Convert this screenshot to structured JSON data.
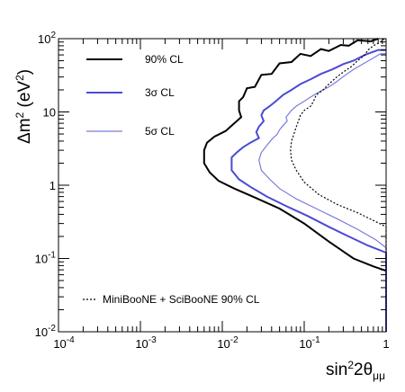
{
  "chart_data": {
    "type": "line",
    "xlabel": "sin²2θμμ",
    "ylabel": "Δm² (eV²)",
    "xscale": "log",
    "yscale": "log",
    "xlim": [
      0.0001,
      1
    ],
    "ylim": [
      0.01,
      100
    ],
    "x_ticks": [
      {
        "value": 0.0001,
        "mantissa": "10",
        "exp": "-4"
      },
      {
        "value": 0.001,
        "mantissa": "10",
        "exp": "-3"
      },
      {
        "value": 0.01,
        "mantissa": "10",
        "exp": "-2"
      },
      {
        "value": 0.1,
        "mantissa": "10",
        "exp": "-1"
      },
      {
        "value": 1,
        "mantissa": "1",
        "exp": ""
      }
    ],
    "y_ticks": [
      {
        "value": 0.01,
        "mantissa": "10",
        "exp": "-2"
      },
      {
        "value": 0.1,
        "mantissa": "10",
        "exp": "-1"
      },
      {
        "value": 1,
        "mantissa": "1",
        "exp": ""
      },
      {
        "value": 10,
        "mantissa": "10",
        "exp": ""
      },
      {
        "value": 100,
        "mantissa": "10",
        "exp": "2"
      }
    ],
    "grid": false,
    "legend_placement": "top-left",
    "series": [
      {
        "name": "90% CL",
        "color": "#000000",
        "width": 2,
        "dash": "",
        "x": [
          0.8,
          0.65,
          0.45,
          0.35,
          0.28,
          0.2,
          0.16,
          0.12,
          0.09,
          0.07,
          0.05,
          0.04,
          0.03,
          0.025,
          0.02,
          0.018,
          0.016,
          0.016,
          0.017,
          0.013,
          0.011,
          0.008,
          0.0065,
          0.006,
          0.006,
          0.007,
          0.009,
          0.014,
          0.025,
          0.05,
          0.1,
          0.2,
          0.4,
          0.7,
          1
        ],
        "y": [
          100,
          92,
          95,
          80,
          82,
          68,
          72,
          58,
          62,
          48,
          46,
          33,
          32,
          22,
          21,
          16,
          14,
          10.5,
          8.5,
          6.5,
          5.5,
          4.6,
          3.8,
          3,
          2,
          1.5,
          1.15,
          0.9,
          0.68,
          0.48,
          0.3,
          0.17,
          0.1,
          0.078,
          0.068
        ]
      },
      {
        "name": "3σ CL",
        "color": "#4a4ad4",
        "width": 2,
        "dash": "",
        "x": [
          1,
          0.8,
          0.55,
          0.4,
          0.3,
          0.22,
          0.16,
          0.12,
          0.09,
          0.07,
          0.055,
          0.045,
          0.038,
          0.032,
          0.03,
          0.032,
          0.028,
          0.026,
          0.028,
          0.022,
          0.018,
          0.015,
          0.013,
          0.013,
          0.016,
          0.022,
          0.035,
          0.06,
          0.11,
          0.2,
          0.35,
          0.6,
          1,
          1
        ],
        "y": [
          70,
          70,
          60,
          50,
          45,
          38,
          33,
          28,
          24,
          20,
          17,
          14,
          12,
          10.5,
          9,
          7.5,
          6.3,
          5.3,
          4.4,
          3.8,
          3.3,
          2.8,
          2.4,
          1.6,
          1.2,
          0.95,
          0.7,
          0.52,
          0.38,
          0.27,
          0.2,
          0.15,
          0.12,
          0.01
        ]
      },
      {
        "name": "5σ CL",
        "color": "#7b7bdc",
        "width": 1.2,
        "dash": "",
        "x": [
          1,
          0.85,
          0.65,
          0.5,
          0.4,
          0.32,
          0.25,
          0.2,
          0.15,
          0.12,
          0.1,
          0.08,
          0.07,
          0.065,
          0.06,
          0.062,
          0.055,
          0.05,
          0.047,
          0.04,
          0.035,
          0.03,
          0.028,
          0.03,
          0.038,
          0.05,
          0.08,
          0.14,
          0.25,
          0.45,
          0.75,
          1,
          1
        ],
        "y": [
          62,
          62,
          52,
          44,
          38,
          32,
          26,
          22,
          18.5,
          16,
          14,
          12,
          10.5,
          9.5,
          8.5,
          7.5,
          6.5,
          5.7,
          5,
          4.2,
          3.5,
          2.8,
          2.2,
          1.6,
          1.2,
          0.9,
          0.65,
          0.48,
          0.35,
          0.25,
          0.18,
          0.14,
          0.01
        ]
      },
      {
        "name": "MiniBooNE + SciBooNE 90% CL",
        "color": "#000000",
        "width": 1.2,
        "dash": "2,2",
        "x": [
          0.95,
          0.85,
          0.7,
          0.6,
          0.55,
          0.45,
          0.38,
          0.3,
          0.25,
          0.2,
          0.17,
          0.14,
          0.13,
          0.12,
          0.1,
          0.09,
          0.085,
          0.08,
          0.075,
          0.07,
          0.068,
          0.07,
          0.08,
          0.1,
          0.15,
          0.25,
          0.45,
          0.7,
          1,
          1
        ],
        "y": [
          100,
          90,
          80,
          70,
          60,
          50,
          42,
          35,
          30,
          24,
          20,
          17,
          14,
          12,
          10.5,
          9,
          7.5,
          6.3,
          5,
          4,
          3,
          2.2,
          1.6,
          1.1,
          0.75,
          0.55,
          0.42,
          0.33,
          0.27,
          0.01
        ]
      }
    ]
  },
  "legend": {
    "items": [
      {
        "label": "90% CL",
        "series": 0
      },
      {
        "label": "3σ CL",
        "series": 1
      },
      {
        "label": "5σ CL",
        "series": 2
      },
      {
        "label": "MiniBooNE + SciBooNE 90% CL",
        "series": 3
      }
    ]
  }
}
